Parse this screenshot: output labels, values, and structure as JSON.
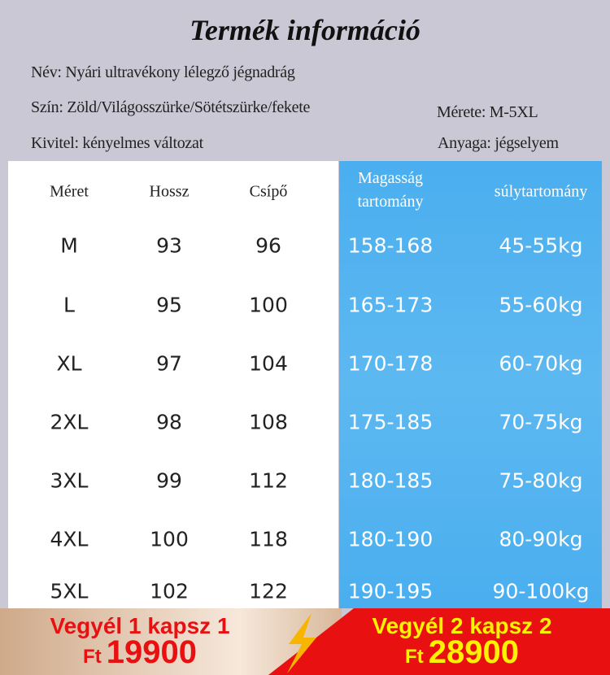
{
  "title": "Termék információ",
  "info": {
    "name": "Név: Nyári ultravékony lélegző jégnadrág",
    "color": "Szín: Zöld/Világosszürke/Sötétszürke/fekete",
    "size": "Mérete: M-5XL",
    "style": "Kivitel: kényelmes változat",
    "material": "Anyaga: jégselyem"
  },
  "table": {
    "headers": [
      "Méret",
      "Hossz",
      "Csípő",
      "Magasság tartomány",
      "súlytartomány"
    ],
    "rows": [
      [
        "M",
        "93",
        "96",
        "158-168",
        "45-55kg"
      ],
      [
        "L",
        "95",
        "100",
        "165-173",
        "55-60kg"
      ],
      [
        "XL",
        "97",
        "104",
        "170-178",
        "60-70kg"
      ],
      [
        "2XL",
        "98",
        "108",
        "175-185",
        "70-75kg"
      ],
      [
        "3XL",
        "99",
        "112",
        "180-185",
        "75-80kg"
      ],
      [
        "4XL",
        "100",
        "118",
        "180-190",
        "80-90kg"
      ],
      [
        "5XL",
        "102",
        "122",
        "190-195",
        "90-100kg"
      ]
    ]
  },
  "banner": {
    "offer1": "Vegyél 1 kapsz 1",
    "currency1": "Ft",
    "price1": "19900",
    "offer2": "Vegyél 2 kapsz 2",
    "currency2": "Ft",
    "price2": "28900",
    "colors": {
      "red": "#e81010",
      "yellow": "#fff200"
    }
  }
}
